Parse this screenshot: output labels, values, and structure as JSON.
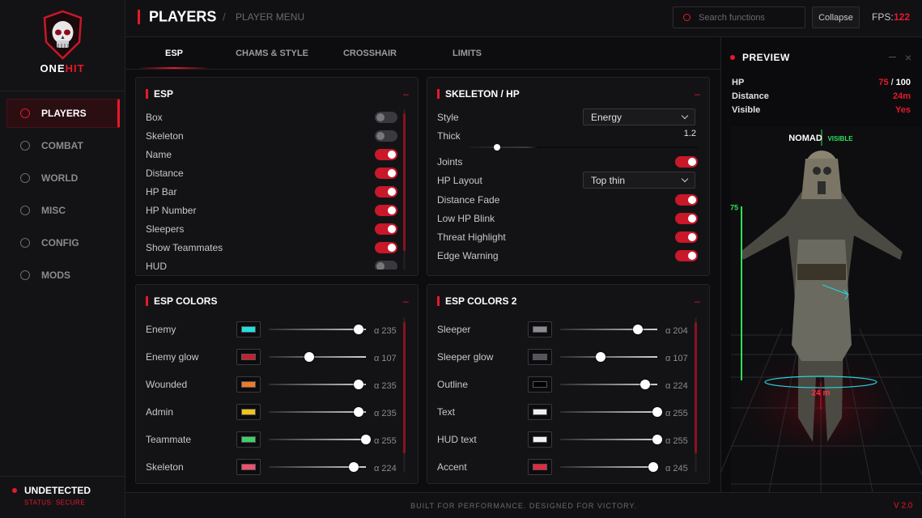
{
  "sidebar": {
    "brand": [
      "ONE",
      "HIT"
    ],
    "nav": [
      "PLAYERS",
      "COMBAT",
      "WORLD",
      "MISC",
      "CONFIG",
      "MODS"
    ],
    "active": 0,
    "status": "UNDETECTED",
    "status_detail": "STATUS: SECURE"
  },
  "header": {
    "title": "PLAYERS",
    "separator": "/",
    "subtitle": "PLAYER MENU",
    "search_placeholder": "Search functions",
    "collapse": "Collapse",
    "fps_label": "FPS:",
    "fps": 122
  },
  "tabs": {
    "items": [
      "ESP",
      "CHAMS & STYLE",
      "CROSSHAIR",
      "LIMITS"
    ],
    "active": 0
  },
  "esp": {
    "title": "ESP",
    "collapse": "–",
    "rows": [
      {
        "label": "Box",
        "on": false
      },
      {
        "label": "Skeleton",
        "on": false
      },
      {
        "label": "Name",
        "on": true
      },
      {
        "label": "Distance",
        "on": true
      },
      {
        "label": "HP Bar",
        "on": true
      },
      {
        "label": "HP Number",
        "on": true
      },
      {
        "label": "Sleepers",
        "on": true
      },
      {
        "label": "Show Teammates",
        "on": true
      },
      {
        "label": "HUD",
        "on": false
      }
    ]
  },
  "skeleton": {
    "title": "SKELETON / HP",
    "collapse": "–",
    "rows": [
      {
        "label": "Style",
        "select": "Energy"
      },
      {
        "label": "Thick",
        "slider": 1.2
      },
      {
        "label": "Joints",
        "on": true
      },
      {
        "label": "HP Layout",
        "select": "Top thin"
      },
      {
        "label": "Distance Fade",
        "on": true
      },
      {
        "label": "Low HP Blink",
        "on": true
      },
      {
        "label": "Threat Highlight",
        "on": true
      },
      {
        "label": "Edge Warning",
        "on": true
      }
    ]
  },
  "alpha_range": [
    0,
    255
  ],
  "esp_colors": {
    "title": "ESP COLORS",
    "collapse": "–",
    "rows": [
      {
        "label": "Enemy",
        "color": "#1fe0dc",
        "alpha": {
          "value": 235,
          "label": "α 235"
        }
      },
      {
        "label": "Enemy glow",
        "color": "#c8202a",
        "alpha": {
          "value": 107,
          "label": "α 107"
        }
      },
      {
        "label": "Wounded",
        "color": "#ef7a2a",
        "alpha": {
          "value": 235,
          "label": "α 235"
        }
      },
      {
        "label": "Admin",
        "color": "#f2c318",
        "alpha": {
          "value": 235,
          "label": "α 235"
        }
      },
      {
        "label": "Teammate",
        "color": "#3ecf6a",
        "alpha": {
          "value": 255,
          "label": "α 255"
        }
      },
      {
        "label": "Skeleton",
        "color": "#f0506a",
        "alpha": {
          "value": 224,
          "label": "α 224"
        }
      }
    ]
  },
  "esp_colors_2": {
    "title": "ESP COLORS 2",
    "collapse": "–",
    "rows": [
      {
        "label": "Sleeper",
        "color": "#8a8a90",
        "alpha": {
          "value": 204,
          "label": "α 204"
        }
      },
      {
        "label": "Sleeper glow",
        "color": "#55555c",
        "alpha": {
          "value": 107,
          "label": "α 107"
        }
      },
      {
        "label": "Outline",
        "color": "#000000",
        "alpha": {
          "value": 224,
          "label": "α 224"
        }
      },
      {
        "label": "Text",
        "color": "#f0f0f0",
        "alpha": {
          "value": 255,
          "label": "α 255"
        }
      },
      {
        "label": "HUD text",
        "color": "#f0f0f0",
        "alpha": {
          "value": 255,
          "label": "α 255"
        }
      },
      {
        "label": "Accent",
        "color": "#e8283c",
        "alpha": {
          "value": 245,
          "label": "α 245"
        }
      }
    ]
  },
  "preview": {
    "title": "PREVIEW",
    "hp_label": "HP",
    "hp": 75,
    "hp_sep": "/",
    "hp_max": 100,
    "distance_label": "Distance",
    "distance": "24m",
    "visible_label": "Visible",
    "visible": "Yes",
    "name": "NOMAD",
    "tag": "VISIBLE",
    "scene_distance": "24 m"
  },
  "footer": {
    "tagline": "BUILT FOR PERFORMANCE. DESIGNED FOR VICTORY.",
    "version": "V 2.0"
  }
}
